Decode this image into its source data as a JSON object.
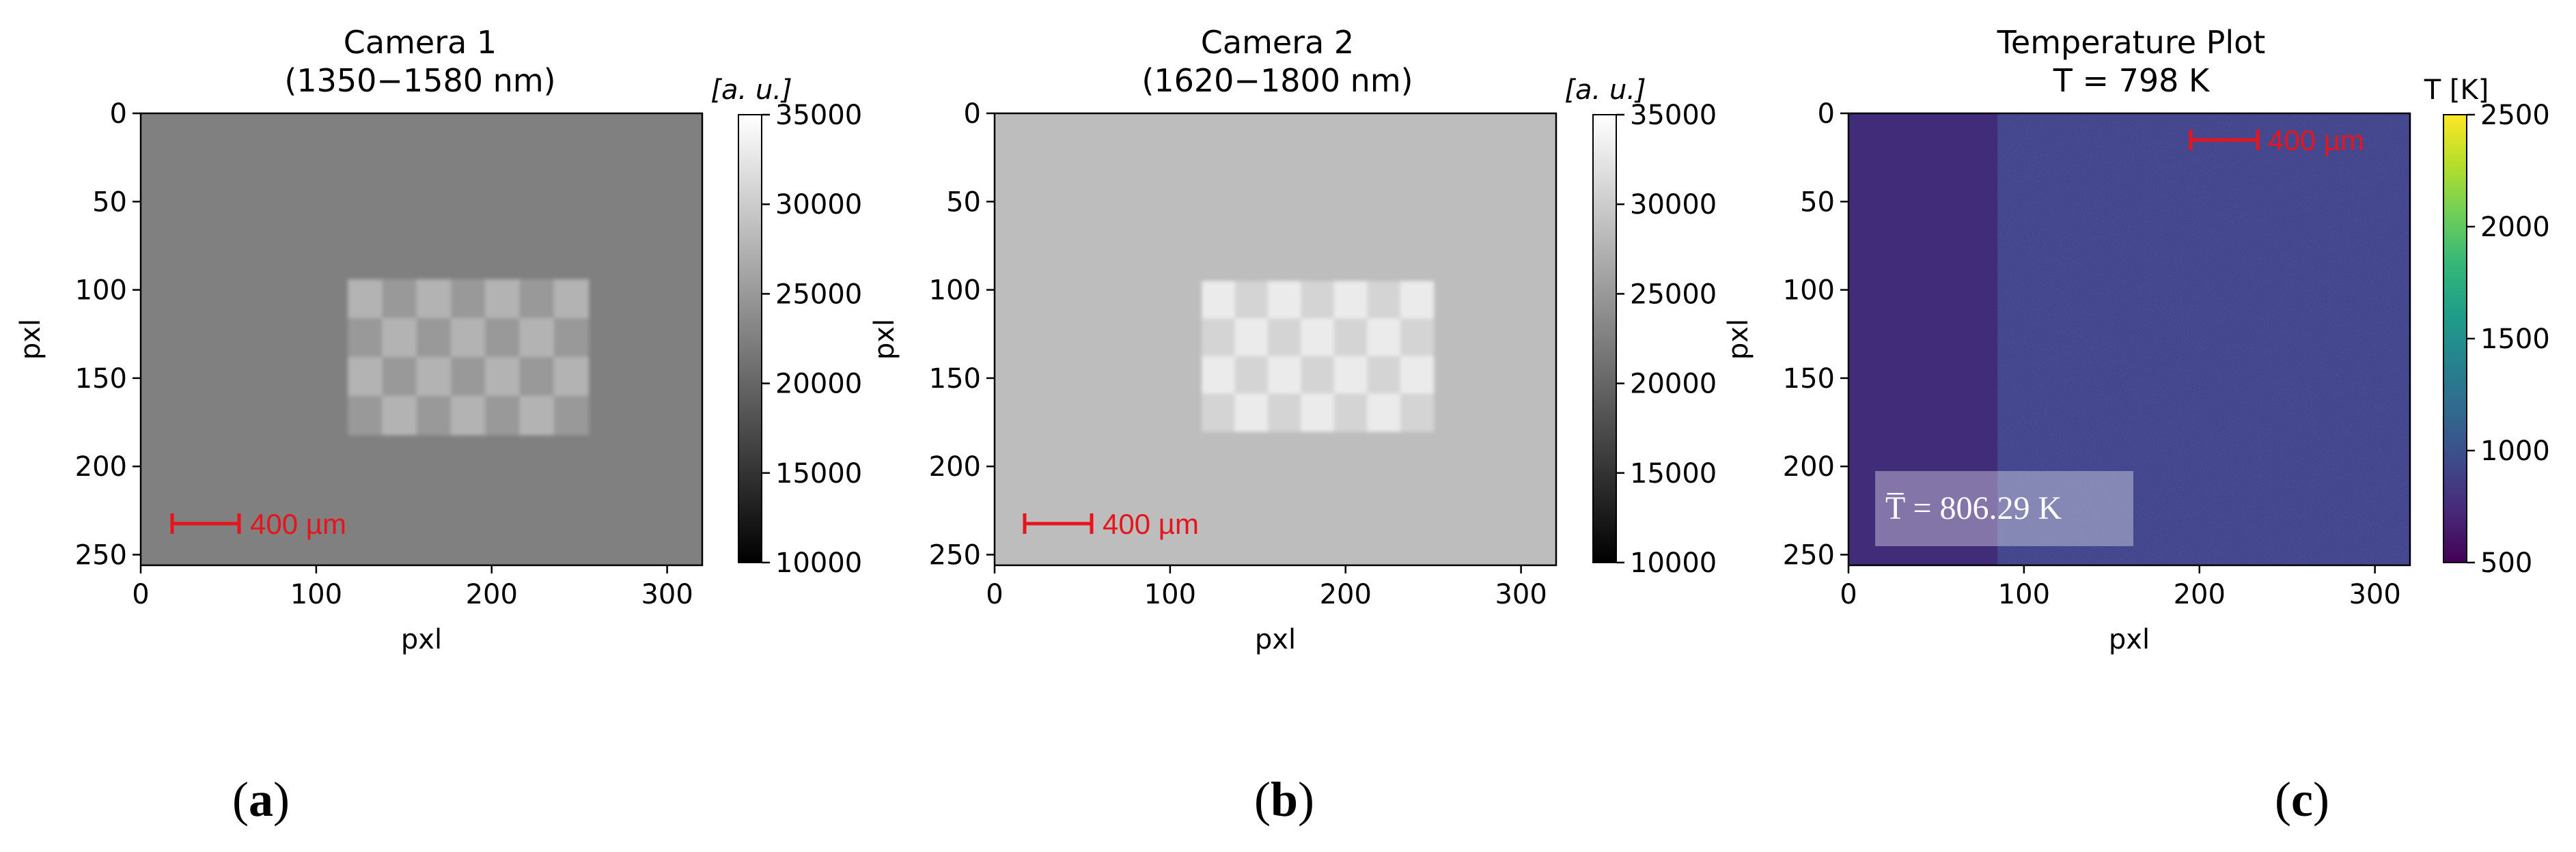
{
  "panels": [
    {
      "letter": "a",
      "title_line1": "Camera 1",
      "title_line2": "(1350−1580 nm)",
      "xlabel": "pxl",
      "ylabel": "pxl",
      "colorbar_label": "[a. u.]",
      "scalebar_label": "400 µm"
    },
    {
      "letter": "b",
      "title_line1": "Camera 2",
      "title_line2": "(1620−1800 nm)",
      "xlabel": "pxl",
      "ylabel": "pxl",
      "colorbar_label": "[a. u.]",
      "scalebar_label": "400 µm"
    },
    {
      "letter": "c",
      "title_line1": "Temperature Plot",
      "title_line2": "T = 798 K",
      "xlabel": "pxl",
      "ylabel": "pxl",
      "colorbar_label": "T [K]",
      "scalebar_label": "400 µm",
      "annotation": "T̅ = 806.29 K"
    }
  ],
  "chart_data": [
    {
      "type": "heatmap",
      "title": "Camera 1 (1350−1580 nm)",
      "xlabel": "pxl",
      "ylabel": "pxl",
      "xlim": [
        0,
        320
      ],
      "ylim": [
        256,
        0
      ],
      "xticks": [
        0,
        100,
        200,
        300
      ],
      "yticks": [
        0,
        50,
        100,
        150,
        200,
        250
      ],
      "colormap": "gray",
      "color_range": [
        10000,
        35000
      ],
      "colorbar_ticks": [
        10000,
        15000,
        20000,
        25000,
        30000,
        35000
      ],
      "colorbar_label": "[a. u.]",
      "background_level": 22500,
      "pattern_level": 27500,
      "checkerboard": {
        "x_range": [
          118,
          255
        ],
        "y_range": [
          94,
          182
        ],
        "cols": 7,
        "rows": 4
      },
      "scalebar": {
        "label": "400 µm",
        "color": "#e8141b",
        "position": "bottom-left"
      }
    },
    {
      "type": "heatmap",
      "title": "Camera 2 (1620−1800 nm)",
      "xlabel": "pxl",
      "ylabel": "pxl",
      "xlim": [
        0,
        320
      ],
      "ylim": [
        256,
        0
      ],
      "xticks": [
        0,
        100,
        200,
        300
      ],
      "yticks": [
        0,
        50,
        100,
        150,
        200,
        250
      ],
      "colormap": "gray",
      "color_range": [
        10000,
        35000
      ],
      "colorbar_ticks": [
        10000,
        15000,
        20000,
        25000,
        30000,
        35000
      ],
      "colorbar_label": "[a. u.]",
      "background_level": 28500,
      "pattern_level": 33000,
      "checkerboard": {
        "x_range": [
          118,
          250
        ],
        "y_range": [
          95,
          180
        ],
        "cols": 7,
        "rows": 4
      },
      "scalebar": {
        "label": "400 µm",
        "color": "#e8141b",
        "position": "bottom-left"
      }
    },
    {
      "type": "heatmap",
      "title": "Temperature Plot T = 798 K",
      "xlabel": "pxl",
      "ylabel": "pxl",
      "xlim": [
        0,
        320
      ],
      "ylim": [
        256,
        0
      ],
      "xticks": [
        0,
        100,
        200,
        300
      ],
      "yticks": [
        0,
        50,
        100,
        150,
        200,
        250
      ],
      "colormap": "viridis",
      "color_range": [
        500,
        2500
      ],
      "colorbar_ticks": [
        500,
        1000,
        1500,
        2000,
        2500
      ],
      "colorbar_label": "T [K]",
      "left_region_value": 800,
      "right_region_value": 830,
      "region_boundary_x": 85,
      "mean_annotation": "T̅ = 806.29 K",
      "scalebar": {
        "label": "400 µm",
        "color": "#e8141b",
        "position": "top-right"
      }
    }
  ],
  "colors": {
    "scalebar": "#e8141b",
    "viridis": [
      "#440154",
      "#482878",
      "#3e4989",
      "#31688e",
      "#26828e",
      "#1f9e89",
      "#35b779",
      "#6ece58",
      "#b5de2b",
      "#fde725"
    ]
  }
}
